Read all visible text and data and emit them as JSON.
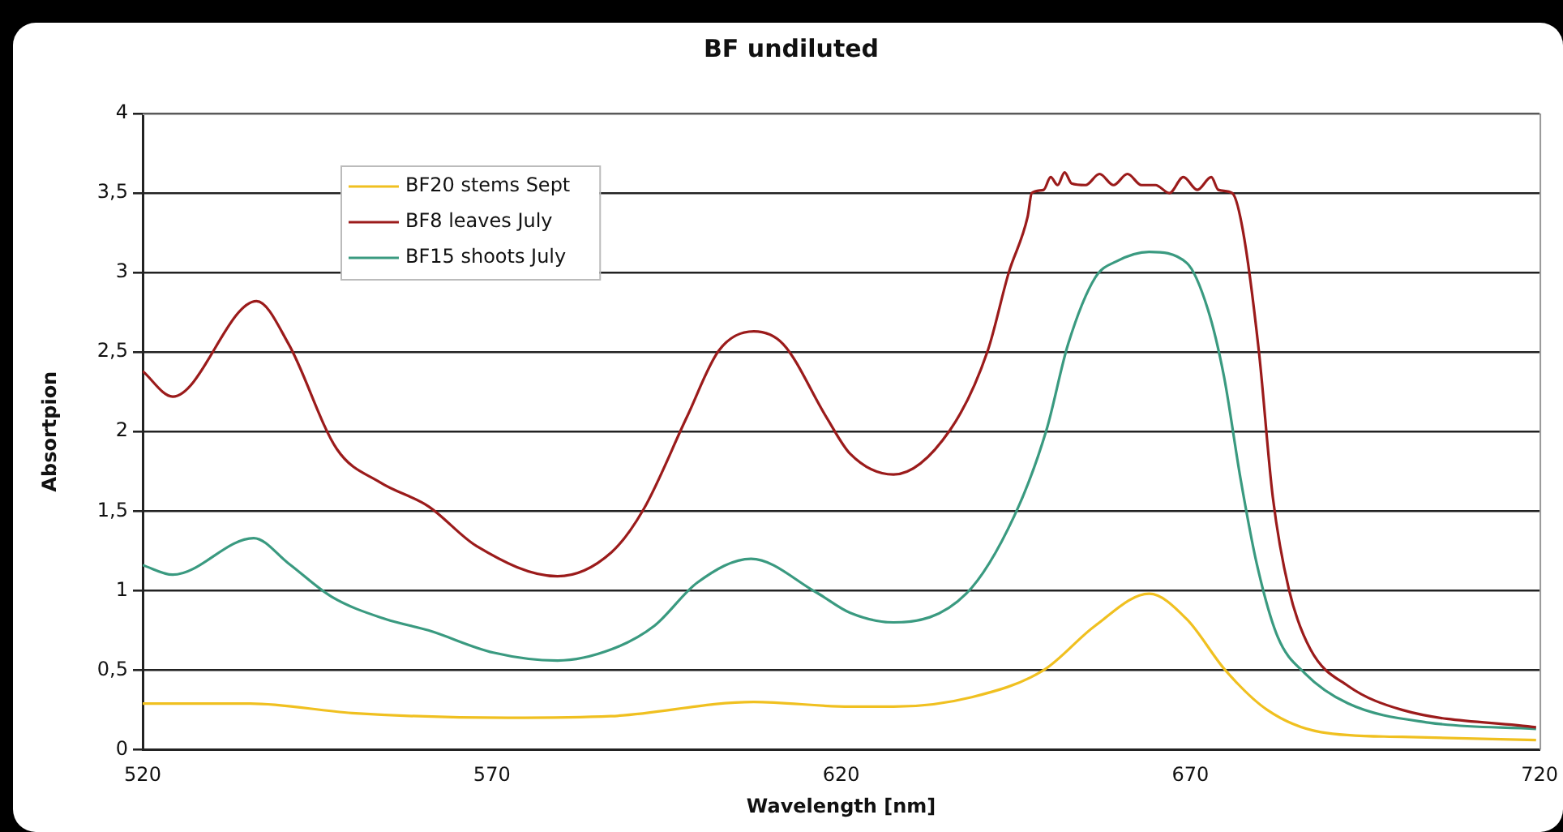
{
  "chart_data": {
    "type": "line",
    "title": "BF undiluted",
    "xlabel": "Wavelength [nm]",
    "ylabel": "Absortpion",
    "xlim": [
      520,
      720
    ],
    "xticks": [
      520,
      570,
      620,
      670,
      720
    ],
    "ylim": [
      0,
      4
    ],
    "yticks": [
      0,
      {
        "value": 0.5,
        "label": "0,5"
      },
      1,
      {
        "value": 1.5,
        "label": "1,5"
      },
      2,
      {
        "value": 2.5,
        "label": "2,5"
      },
      3,
      {
        "value": 3.5,
        "label": "3,5"
      },
      4
    ],
    "grid": "y",
    "legend": "top left",
    "marker": "none",
    "line_style": "solid",
    "series": [
      {
        "name": "BF20 stems Sept",
        "color": "#f0c020",
        "x": [
          520,
          535.4,
          550,
          572.3,
          587,
          607.5,
          621.3,
          627.5,
          638.7,
          649,
          656.4,
          664.1,
          669.5,
          675,
          681,
          688.7,
          700.3,
          719.5
        ],
        "values": [
          0.29,
          0.29,
          0.23,
          0.2,
          0.21,
          0.3,
          0.27,
          0.27,
          0.33,
          0.5,
          0.78,
          0.98,
          0.82,
          0.5,
          0.25,
          0.11,
          0.08,
          0.06
        ]
      },
      {
        "name": "BF8 leaves July",
        "color": "#9b1b1b",
        "x": [
          520,
          524.3,
          536.3,
          540.9,
          547.8,
          554,
          560.9,
          567.8,
          579.4,
          587.1,
          591.7,
          597.9,
          602.5,
          607.5,
          611.7,
          617.9,
          621.3,
          627.5,
          635.6,
          641,
          644,
          646.7,
          647.3,
          649,
          650,
          651,
          652,
          653,
          655,
          657,
          659,
          661,
          663,
          665,
          667,
          669,
          671,
          673,
          674,
          676,
          677.5,
          679.8,
          681.8,
          684.1,
          687.2,
          692.6,
          700.3,
          719.5
        ],
        "values": [
          2.38,
          2.22,
          2.82,
          2.55,
          1.89,
          1.68,
          1.53,
          1.28,
          1.09,
          1.24,
          1.51,
          2.09,
          2.51,
          2.63,
          2.55,
          2.09,
          1.86,
          1.73,
          2.01,
          2.51,
          3,
          3.35,
          3.5,
          3.52,
          3.6,
          3.55,
          3.63,
          3.56,
          3.55,
          3.62,
          3.55,
          3.62,
          3.55,
          3.55,
          3.5,
          3.6,
          3.52,
          3.6,
          3.52,
          3.5,
          3.27,
          2.51,
          1.59,
          1.01,
          0.63,
          0.4,
          0.25,
          0.14
        ]
      },
      {
        "name": "BF15 shoots July",
        "color": "#3a9a80",
        "x": [
          520,
          524.3,
          535.9,
          540.9,
          547.1,
          554.8,
          560.9,
          570.2,
          579.4,
          587.1,
          593.3,
          599.4,
          607.1,
          616.4,
          621.3,
          627.5,
          637.9,
          644.8,
          649.4,
          652.5,
          656.4,
          659.4,
          664.1,
          669.5,
          672.5,
          674.8,
          677.2,
          679.5,
          682.5,
          686.4,
          692.6,
          704.1,
          719.5
        ],
        "values": [
          1.16,
          1.1,
          1.33,
          1.17,
          0.96,
          0.82,
          0.75,
          0.61,
          0.56,
          0.63,
          0.78,
          1.05,
          1.2,
          0.99,
          0.86,
          0.8,
          0.98,
          1.47,
          2.01,
          2.55,
          2.97,
          3.07,
          3.13,
          3.06,
          2.77,
          2.35,
          1.7,
          1.17,
          0.71,
          0.48,
          0.29,
          0.17,
          0.13
        ]
      }
    ]
  }
}
